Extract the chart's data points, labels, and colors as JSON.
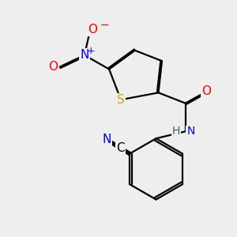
{
  "bg_color": "#eeeeee",
  "atom_colors": {
    "C": "#000000",
    "N": "#0000ff",
    "O": "#ff0000",
    "S": "#ccaa00",
    "H": "#336666"
  },
  "bond_color": "#000000",
  "bond_width": 1.6,
  "dbo": 0.055,
  "figsize": [
    3.0,
    3.0
  ],
  "dpi": 100
}
